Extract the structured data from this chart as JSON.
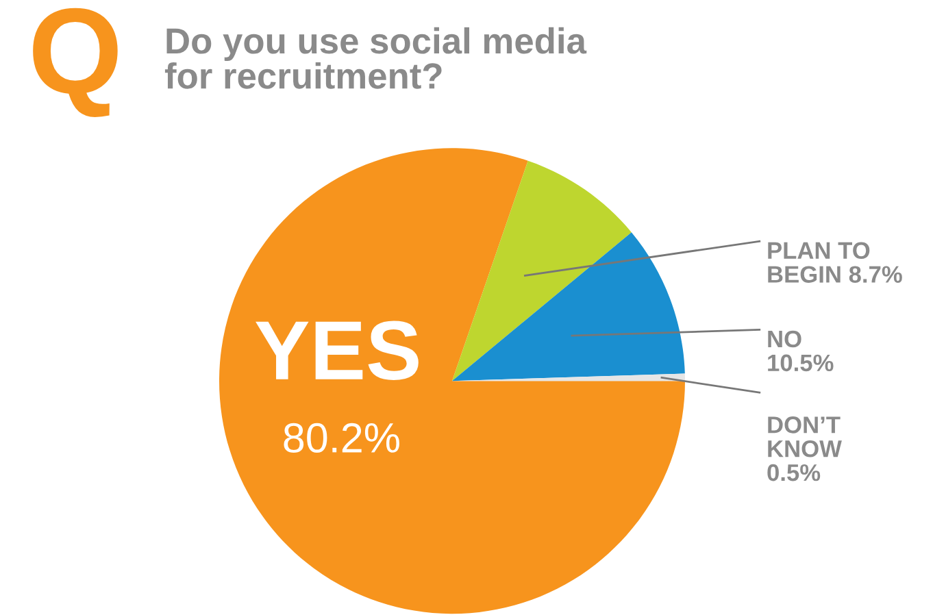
{
  "chart_data": {
    "type": "pie",
    "title": "Do you use social media\nfor recruitment?",
    "annotations": [
      "Q"
    ],
    "categories": [
      "YES",
      "PLAN TO BEGIN",
      "NO",
      "DON’T KNOW"
    ],
    "values": [
      80.2,
      8.7,
      10.5,
      0.5
    ],
    "colors": [
      "#f7941d",
      "#bed62f",
      "#1a8fd0",
      "#e6e6e6"
    ],
    "value_labels": [
      "80.2%",
      "8.7%",
      "10.5%",
      "0.5%"
    ]
  }
}
